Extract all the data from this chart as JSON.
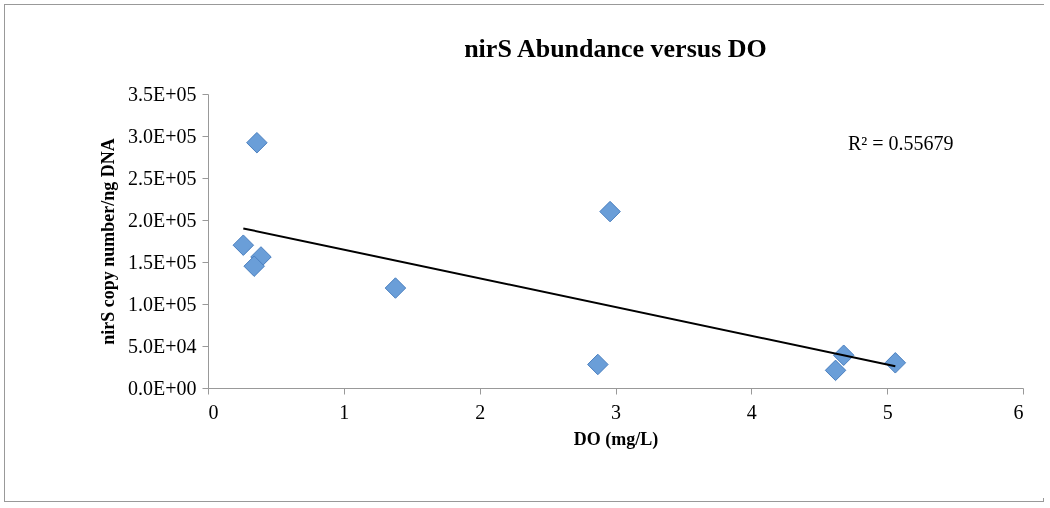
{
  "chart_data": {
    "type": "scatter",
    "title": "nirS Abundance versus DO",
    "xlabel": "DO (mg/L)",
    "ylabel": "nirS copy number/ng DNA",
    "xlim": [
      0,
      6
    ],
    "xticks": [
      0,
      1,
      2,
      3,
      4,
      5,
      6
    ],
    "ylim": [
      0,
      350000
    ],
    "yticks": [
      {
        "value": 0,
        "label": "0.0E+00"
      },
      {
        "value": 50000,
        "label": "5.0E+04"
      },
      {
        "value": 100000,
        "label": "1.0E+05"
      },
      {
        "value": 150000,
        "label": "1.5E+05"
      },
      {
        "value": 200000,
        "label": "2.0E+05"
      },
      {
        "value": 250000,
        "label": "2.5E+05"
      },
      {
        "value": 300000,
        "label": "3.0E+05"
      },
      {
        "value": 350000,
        "label": "3.5E+05"
      }
    ],
    "series": [
      {
        "marker": "diamond",
        "color": "#6a9ed8",
        "x": [
          0.36,
          0.26,
          0.39,
          0.34,
          1.38,
          2.96,
          2.87,
          4.68,
          4.62,
          5.06
        ],
        "values": [
          292000,
          170000,
          156000,
          145000,
          119000,
          210000,
          28000,
          39000,
          21000,
          30000
        ]
      },
      {
        "type": "line",
        "color": "#000000",
        "x": [
          0.26,
          5.06
        ],
        "values": [
          190000,
          26000
        ]
      }
    ],
    "annotations": [
      "R² = 0.55679"
    ]
  }
}
